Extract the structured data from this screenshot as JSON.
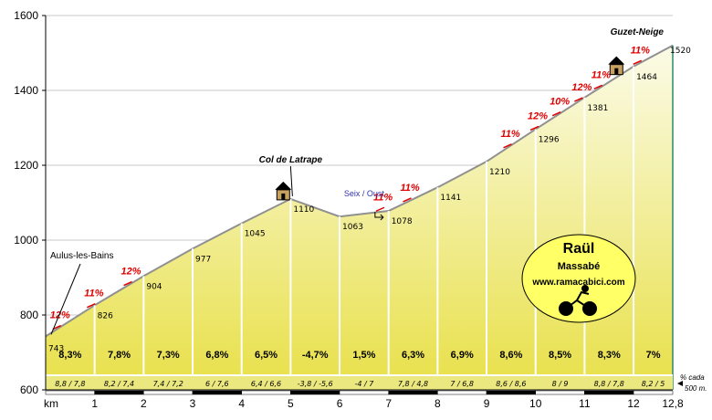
{
  "chart_data": {
    "type": "area",
    "xlabel": "km",
    "ylim": [
      600,
      1600
    ],
    "xlim": [
      0,
      12.8
    ],
    "yticks": [
      600,
      800,
      1000,
      1200,
      1400,
      1600
    ],
    "xticks": [
      "0",
      "1",
      "2",
      "3",
      "4",
      "5",
      "6",
      "7",
      "8",
      "9",
      "10",
      "11",
      "12",
      "12,8"
    ],
    "profile": [
      {
        "km": 0,
        "alt": 743
      },
      {
        "km": 1,
        "alt": 826
      },
      {
        "km": 2,
        "alt": 904
      },
      {
        "km": 3,
        "alt": 977
      },
      {
        "km": 4,
        "alt": 1045
      },
      {
        "km": 5,
        "alt": 1110
      },
      {
        "km": 6,
        "alt": 1063
      },
      {
        "km": 7,
        "alt": 1078
      },
      {
        "km": 8,
        "alt": 1141
      },
      {
        "km": 9,
        "alt": 1210
      },
      {
        "km": 10,
        "alt": 1296
      },
      {
        "km": 11,
        "alt": 1381
      },
      {
        "km": 12,
        "alt": 1464
      },
      {
        "km": 12.8,
        "alt": 1520
      }
    ],
    "segment_slopes": [
      "8,3%",
      "7,8%",
      "7,3%",
      "6,8%",
      "6,5%",
      "-4,7%",
      "1,5%",
      "6,3%",
      "6,9%",
      "8,6%",
      "8,5%",
      "8,3%",
      "7%"
    ],
    "half_km_slopes": [
      "8,8 / 7,8",
      "8,2 / 7,4",
      "7,4 / 7,2",
      "6 / 7,6",
      "6,4 / 6,6",
      "-3,8 / -5,6",
      "-4 / 7",
      "7,8 / 4,8",
      "7 / 6,8",
      "8,6 / 8,6",
      "8 / 9",
      "8,8 / 7,8",
      "8,2 / 5"
    ],
    "half_km_note": [
      "% cada",
      "500 m."
    ],
    "max_slope_marks": [
      {
        "km": 0.2,
        "label": "12%"
      },
      {
        "km": 0.9,
        "label": "11%"
      },
      {
        "km": 1.65,
        "label": "12%"
      },
      {
        "km": 6.8,
        "label": "11%"
      },
      {
        "km": 7.35,
        "label": "11%"
      },
      {
        "km": 9.4,
        "label": "11%"
      },
      {
        "km": 9.95,
        "label": "12%"
      },
      {
        "km": 10.4,
        "label": "10%"
      },
      {
        "km": 10.85,
        "label": "12%"
      },
      {
        "km": 11.25,
        "label": "11%"
      },
      {
        "km": 12.05,
        "label": "11%"
      }
    ],
    "places": [
      {
        "km": 0,
        "label": "Aulus-les-Bains"
      },
      {
        "km": 5,
        "label": "Col de Latrape"
      },
      {
        "km": 6.5,
        "label": "Seix / Oust"
      },
      {
        "km": 12.8,
        "label": "Guzet-Neige"
      }
    ],
    "refuge_marks_km": [
      4.85,
      11.65
    ]
  },
  "logo": {
    "line1": "Raül",
    "line2": "Massabé",
    "line3": "www.ramacabici.com",
    "icon": "cyclist-icon"
  },
  "colors": {
    "fill_top": "#fbfbe8",
    "fill_bottom": "#e8e048",
    "profile_line": "#909090",
    "slope_red": "#e00000",
    "logo_fill": "#ffff66",
    "seix_blue": "#3333aa"
  }
}
